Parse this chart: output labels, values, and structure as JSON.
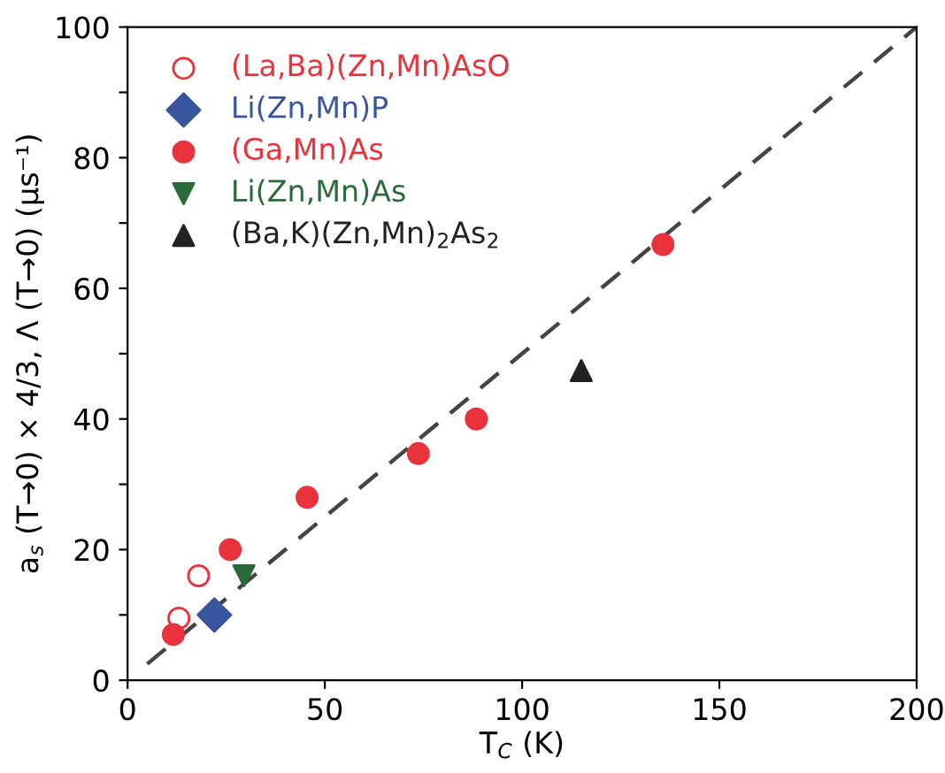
{
  "chart_data": {
    "type": "scatter",
    "xlabel": "T$_{C}$ (K)",
    "ylabel": "a$_{s}$ (T→0) × 4/3, Λ (T→0) (μs⁻¹)",
    "xlim": [
      0,
      200
    ],
    "ylim": [
      0,
      100
    ],
    "xticks": [
      0,
      50,
      100,
      150,
      200
    ],
    "yticks": [
      0,
      {
        "value": 10,
        "label": null
      },
      20,
      {
        "value": 30,
        "label": null
      },
      40,
      {
        "value": 50,
        "label": null
      },
      60,
      {
        "value": 70,
        "label": null
      },
      80,
      {
        "value": 90,
        "label": null
      },
      100
    ],
    "grid": false,
    "legend": "top left",
    "series": [
      {
        "name": "(La,Ba)(Zn,Mn)AsO",
        "color": "#e8323c",
        "marker": "open circle",
        "x": [
          13,
          18
        ],
        "values": [
          9.5,
          16
        ]
      },
      {
        "name": "Li(Zn,Mn)P",
        "color": "#3a55a0",
        "marker": "diamond",
        "x": [
          22
        ],
        "values": [
          10
        ]
      },
      {
        "name": "(Ga,Mn)As",
        "color": "#e8323c",
        "marker": "circle",
        "x": [
          11.6,
          26,
          45.5,
          73.7,
          88.4,
          135.7
        ],
        "values": [
          7,
          20,
          28,
          34.7,
          40,
          66.7
        ]
      },
      {
        "name": "Li(Zn,Mn)As",
        "color": "#2a6a3a",
        "marker": "triangle down",
        "x": [
          29.5
        ],
        "values": [
          16
        ]
      },
      {
        "name": "(Ba,K)(Zn,Mn)$_{2}$As$_{2}$",
        "color": "#222222",
        "marker": "triangle",
        "x": [
          115
        ],
        "values": [
          47.4
        ]
      },
      {
        "type": "line",
        "color": "#444444",
        "line_style": "dashed",
        "marker": "none",
        "x": [
          5,
          200
        ],
        "values": [
          2.5,
          100
        ]
      }
    ]
  }
}
